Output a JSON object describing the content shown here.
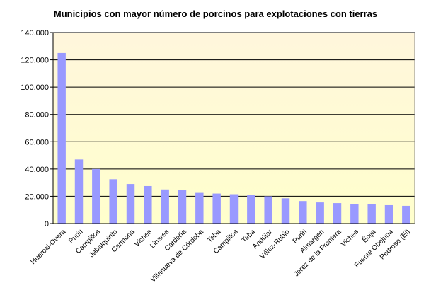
{
  "chart_data": {
    "type": "bar",
    "title": "Municipios con mayor número de porcinos para explotaciones con tierras",
    "xlabel": "",
    "ylabel": "",
    "ylim": [
      0,
      140000
    ],
    "yticks": [
      0,
      20000,
      40000,
      60000,
      80000,
      100000,
      120000,
      140000
    ],
    "ytick_labels": [
      "0",
      "20.000",
      "40.000",
      "60.000",
      "80.000",
      "100.000",
      "120.000",
      "140.000"
    ],
    "grid": true,
    "legend": "none",
    "categories": [
      "Huércal-Overa",
      "Puriri",
      "Campillos",
      "Jabalquinto",
      "Carmona",
      "Viches",
      "Linares",
      "Cardeña",
      "Villanueva de Córdoba",
      "Teba",
      "Campillos",
      "Teba",
      "Andújar",
      "Vélez-Rubio",
      "Puriri",
      "Almargen",
      "Jerez de la Frontera",
      "Viches",
      "Écija",
      "Fuente Obejuna",
      "Pedroso (El)"
    ],
    "values": [
      125000,
      47000,
      40000,
      32500,
      29000,
      27500,
      25000,
      24500,
      22500,
      22000,
      21500,
      21000,
      20000,
      18500,
      16500,
      15500,
      15000,
      14500,
      14000,
      13500,
      13000
    ],
    "colors": {
      "bar": "#9999ff",
      "plot_bg": "#ffffcc",
      "plot_bg_top": "#fff6dc",
      "grid": "#000000",
      "axis": "#000000"
    }
  }
}
